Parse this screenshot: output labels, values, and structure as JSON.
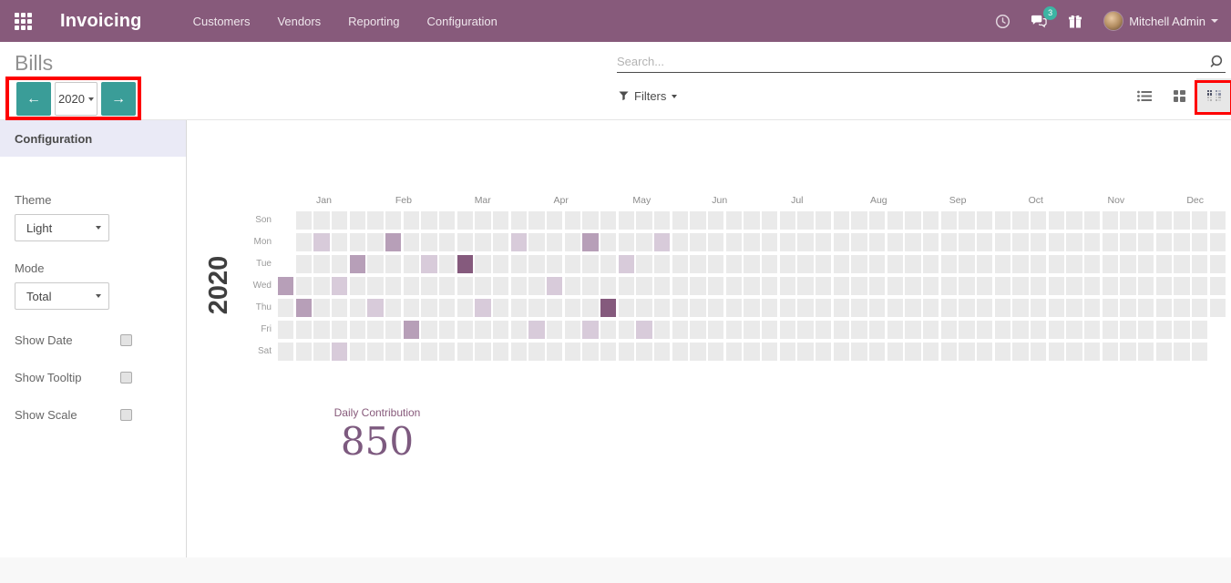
{
  "navbar": {
    "app_title": "Invoicing",
    "menu": [
      "Customers",
      "Vendors",
      "Reporting",
      "Configuration"
    ],
    "message_count": "3",
    "user_name": "Mitchell Admin",
    "bg_color": "#875A7B"
  },
  "control_panel": {
    "breadcrumb": "Bills",
    "search_placeholder": "Search...",
    "filters_label": "Filters",
    "year_selector_value": "2020",
    "accent_teal": "#3a9d98",
    "views": [
      "list",
      "kanban",
      "heatmap"
    ],
    "active_view": "heatmap"
  },
  "sidebar": {
    "header": "Configuration",
    "fields": [
      {
        "name": "theme-select",
        "label": "Theme",
        "type": "select",
        "value": "Light"
      },
      {
        "name": "mode-select",
        "label": "Mode",
        "type": "select",
        "value": "Total"
      },
      {
        "name": "show-date-checkbox",
        "label": "Show Date",
        "type": "checkbox",
        "checked": false
      },
      {
        "name": "show-tooltip-checkbox",
        "label": "Show Tooltip",
        "type": "checkbox",
        "checked": false
      },
      {
        "name": "show-scale-checkbox",
        "label": "Show Scale",
        "type": "checkbox",
        "checked": false
      }
    ]
  },
  "chart_data": {
    "type": "heatmap",
    "title": "2020",
    "summary_label": "Daily Contribution",
    "summary_value": "850",
    "months": [
      "Jan",
      "Feb",
      "Mar",
      "Apr",
      "May",
      "Jun",
      "Jul",
      "Aug",
      "Sep",
      "Oct",
      "Nov",
      "Dec"
    ],
    "day_rows": [
      "Son",
      "Mon",
      "Tue",
      "Wed",
      "Thu",
      "Fri",
      "Sat"
    ],
    "weeks": 53,
    "first_week_start_row": "Wed",
    "last_week_end_row": "Thu",
    "legend": "off",
    "palette": {
      "empty": "#eaeaea",
      "light": "#d8cbda",
      "medium": "#b79fb8",
      "dark": "#855a7d"
    },
    "cells": [
      {
        "day": "Wed",
        "week": 0,
        "level": "medium"
      },
      {
        "day": "Thu",
        "week": 1,
        "level": "medium"
      },
      {
        "day": "Mon",
        "week": 2,
        "level": "light"
      },
      {
        "day": "Wed",
        "week": 3,
        "level": "light"
      },
      {
        "day": "Sat",
        "week": 3,
        "level": "light"
      },
      {
        "day": "Tue",
        "week": 4,
        "level": "medium"
      },
      {
        "day": "Thu",
        "week": 5,
        "level": "light"
      },
      {
        "day": "Mon",
        "week": 6,
        "level": "medium"
      },
      {
        "day": "Fri",
        "week": 7,
        "level": "medium"
      },
      {
        "day": "Tue",
        "week": 8,
        "level": "light"
      },
      {
        "day": "Tue",
        "week": 10,
        "level": "dark"
      },
      {
        "day": "Thu",
        "week": 11,
        "level": "light"
      },
      {
        "day": "Mon",
        "week": 13,
        "level": "light"
      },
      {
        "day": "Fri",
        "week": 14,
        "level": "light"
      },
      {
        "day": "Wed",
        "week": 15,
        "level": "light"
      },
      {
        "day": "Mon",
        "week": 17,
        "level": "medium"
      },
      {
        "day": "Fri",
        "week": 17,
        "level": "light"
      },
      {
        "day": "Thu",
        "week": 18,
        "level": "dark"
      },
      {
        "day": "Tue",
        "week": 19,
        "level": "light"
      },
      {
        "day": "Fri",
        "week": 20,
        "level": "light"
      },
      {
        "day": "Mon",
        "week": 21,
        "level": "light"
      }
    ]
  },
  "annotations": [
    {
      "target": "year-navigation",
      "color": "#fe0000"
    },
    {
      "target": "heatmap-view-button",
      "color": "#fe0000"
    }
  ]
}
